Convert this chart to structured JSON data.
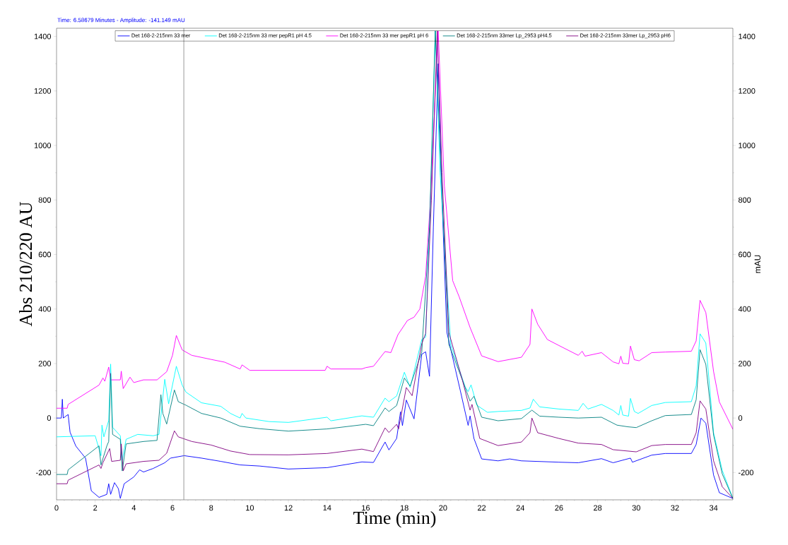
{
  "chart_data": {
    "type": "line",
    "annotations": [
      "Time:  6.58679 Minutes - Amplitude:  -141.149 mAU"
    ],
    "xlabel": "Time (min)",
    "ylabel": "Abs 210/220 AU",
    "y2label": "mAU",
    "xlim": [
      0,
      35
    ],
    "ylim": [
      -300,
      1430
    ],
    "y2lim": [
      -300,
      1430
    ],
    "xticks": [
      0,
      2,
      4,
      6,
      8,
      10,
      12,
      14,
      16,
      18,
      20,
      22,
      24,
      26,
      28,
      30,
      32,
      34
    ],
    "yticks": [
      -200,
      0,
      200,
      400,
      600,
      800,
      1000,
      1200,
      1400
    ],
    "y2ticks": [
      -200,
      0,
      200,
      400,
      600,
      800,
      1000,
      1200,
      1400
    ],
    "legend": "top",
    "ref_lines": [
      {
        "axis": "x",
        "value": 6.58679,
        "color": "#808080"
      }
    ],
    "series": [
      {
        "name": "Det 168-2-215nm 33 mer",
        "color": "#0000ff",
        "x": [
          0,
          0.25,
          0.3,
          0.35,
          0.6,
          0.7,
          1.0,
          1.5,
          1.8,
          2.2,
          2.6,
          2.7,
          2.8,
          3.0,
          3.2,
          3.3,
          3.5,
          4.0,
          4.3,
          4.5,
          5.0,
          5.6,
          5.9,
          6.6,
          7.5,
          8.5,
          9.5,
          10.5,
          12,
          14,
          15.8,
          16.4,
          17.0,
          17.2,
          17.6,
          17.8,
          17.9,
          18.1,
          18.5,
          18.9,
          19.1,
          19.3,
          19.5,
          19.75,
          19.95,
          20.2,
          20.9,
          21.3,
          21.4,
          21.6,
          22.0,
          22.85,
          23.45,
          24.06,
          26,
          27,
          28.2,
          28.8,
          29.7,
          29.8,
          30.8,
          31.5,
          32.85,
          33.1,
          33.35,
          33.6,
          34.0,
          34.3,
          35
        ],
        "values": [
          0,
          0,
          69,
          0,
          13,
          -52,
          -103,
          -147,
          -267,
          -291,
          -280,
          -241,
          -280,
          -237,
          -259,
          -295,
          -241,
          -216,
          -190,
          -198,
          -185,
          -164,
          -147,
          -138,
          -147,
          -159,
          -172,
          -176,
          -187,
          -182,
          -161,
          -163,
          -88,
          -117,
          -75,
          23,
          -28,
          66,
          -3,
          234,
          243,
          153,
          700,
          1300,
          800,
          314,
          99,
          -27,
          8,
          -75,
          -150,
          -157,
          -150,
          -157,
          -162,
          -164,
          -149,
          -164,
          -147,
          -162,
          -136,
          -130,
          -130,
          -97,
          0,
          -19,
          -209,
          -274,
          -295
        ]
      },
      {
        "name": "Det 168-2-215nm 33 mer pepR1 pH 4.5",
        "color": "#00ffff",
        "x": [
          0,
          2.0,
          2.3,
          2.35,
          2.45,
          2.7,
          2.8,
          2.9,
          3.3,
          3.4,
          3.6,
          4.2,
          5.0,
          5.3,
          5.6,
          5.8,
          6.2,
          6.5,
          6.7,
          7.5,
          8.5,
          9.0,
          9.5,
          9.6,
          9.8,
          11.0,
          12,
          14.0,
          14.2,
          15.8,
          16.4,
          17.0,
          17.2,
          17.6,
          18.0,
          18.3,
          18.9,
          19.1,
          19.35,
          19.6,
          19.85,
          20.4,
          21.15,
          21.3,
          21.45,
          21.75,
          22.3,
          22.85,
          24.06,
          24.5,
          24.67,
          25.0,
          26,
          27,
          27.25,
          27.5,
          28.2,
          28.8,
          29.1,
          29.2,
          29.3,
          29.6,
          29.7,
          29.9,
          30.1,
          30.8,
          31.5,
          32.85,
          33.1,
          33.3,
          33.6,
          34.0,
          34.45,
          35
        ],
        "values": [
          -69,
          -65,
          -138,
          -26,
          -69,
          -9,
          198,
          -34,
          -65,
          -155,
          -78,
          -60,
          -65,
          -60,
          142,
          52,
          190,
          121,
          95,
          56,
          43,
          17,
          0,
          17,
          0,
          -13,
          -16,
          3,
          -10,
          8,
          3,
          73,
          60,
          81,
          168,
          112,
          288,
          297,
          800,
          1420,
          900,
          270,
          114,
          97,
          122,
          47,
          21,
          24,
          28,
          37,
          69,
          41,
          33,
          28,
          54,
          33,
          50,
          28,
          11,
          46,
          11,
          7,
          72,
          24,
          17,
          46,
          57,
          60,
          119,
          309,
          275,
          -54,
          -192,
          -295
        ]
      },
      {
        "name": "Det 168-2-215nm 33 mer pepR1 pH 6",
        "color": "#ff00ff",
        "x": [
          0,
          0.55,
          0.6,
          2.2,
          2.4,
          2.5,
          2.7,
          2.8,
          3.3,
          3.35,
          3.45,
          3.8,
          4.0,
          4.5,
          5.2,
          5.7,
          6.0,
          6.2,
          6.5,
          7.0,
          8.0,
          8.7,
          9.5,
          9.6,
          10,
          12,
          13.9,
          14.0,
          14.2,
          15.8,
          16.0,
          16.4,
          17.0,
          17.3,
          17.67,
          18.16,
          18.5,
          18.8,
          19.1,
          19.35,
          19.75,
          20.07,
          20.5,
          20.84,
          21.4,
          22.0,
          22.85,
          24.06,
          24.5,
          24.6,
          24.9,
          25.4,
          26,
          27,
          27.2,
          27.35,
          28.2,
          28.8,
          29.1,
          29.2,
          29.3,
          29.6,
          29.7,
          29.9,
          30.15,
          30.8,
          31.5,
          32.85,
          33.1,
          33.3,
          33.6,
          34.0,
          34.3,
          35
        ],
        "values": [
          36,
          36,
          50,
          121,
          147,
          135,
          187,
          140,
          140,
          172,
          108,
          150,
          130,
          140,
          140,
          170,
          230,
          303,
          250,
          230,
          215,
          205,
          180,
          195,
          175,
          175,
          175,
          190,
          180,
          180,
          185,
          190,
          244,
          240,
          306,
          358,
          370,
          400,
          520,
          800,
          1420,
          852,
          504,
          444,
          332,
          228,
          207,
          223,
          270,
          400,
          344,
          288,
          266,
          230,
          245,
          227,
          240,
          206,
          199,
          227,
          201,
          199,
          264,
          214,
          210,
          240,
          242,
          245,
          283,
          432,
          387,
          171,
          59,
          -41
        ]
      },
      {
        "name": "Det 168-2-215nm 33mer Lp_2953 pH4.5",
        "color": "#008080",
        "x": [
          0,
          0.55,
          0.6,
          2.2,
          2.3,
          2.6,
          2.7,
          2.8,
          2.9,
          3.3,
          3.4,
          3.6,
          4.5,
          5.2,
          5.4,
          5.5,
          5.7,
          6.1,
          6.3,
          6.7,
          7.5,
          8.5,
          9.5,
          10.5,
          12,
          14,
          16,
          16.4,
          17.0,
          17.2,
          17.6,
          18.0,
          18.3,
          18.9,
          19.3,
          19.6,
          19.9,
          20.3,
          21.0,
          21.4,
          21.6,
          22.0,
          22.85,
          24.06,
          24.6,
          25,
          26,
          27,
          28.2,
          29.0,
          29.55,
          30.0,
          30.8,
          31.5,
          32.85,
          33.1,
          33.3,
          33.6,
          34.0,
          34.45,
          35
        ],
        "values": [
          -207,
          -207,
          -190,
          -102,
          -172,
          -103,
          -86,
          164,
          -60,
          -78,
          -194,
          -95,
          -86,
          -82,
          86,
          17,
          -22,
          103,
          60,
          47,
          17,
          0,
          -30,
          -39,
          -48,
          -40,
          -23,
          -28,
          37,
          24,
          46,
          147,
          117,
          242,
          700,
          1420,
          900,
          270,
          140,
          62,
          80,
          3,
          -10,
          -2,
          29,
          7,
          3,
          0,
          3,
          -26,
          -32,
          -35,
          -10,
          9,
          13,
          67,
          251,
          197,
          -62,
          -205,
          -295
        ]
      },
      {
        "name": "Det 168-2-215nm 33mer Lp_2953 pH6",
        "color": "#800080",
        "x": [
          0,
          0.55,
          0.6,
          2.2,
          2.3,
          2.4,
          2.75,
          2.85,
          3.3,
          3.35,
          3.45,
          3.6,
          4.5,
          5.3,
          5.7,
          6.1,
          6.3,
          7.0,
          8.0,
          9.0,
          10,
          12,
          14,
          15.8,
          16.4,
          17.0,
          17.2,
          17.6,
          17.7,
          18.1,
          18.4,
          18.9,
          19.1,
          19.4,
          19.7,
          19.95,
          20.3,
          21.0,
          21.4,
          21.5,
          21.9,
          22.85,
          24.06,
          24.5,
          24.6,
          24.9,
          26,
          27,
          28.2,
          28.8,
          30,
          30.8,
          31.5,
          32.85,
          33.1,
          33.3,
          33.6,
          34,
          34.45,
          35
        ],
        "values": [
          -241,
          -241,
          -228,
          -172,
          -185,
          -164,
          -112,
          -159,
          -155,
          -95,
          -194,
          -168,
          -159,
          -155,
          -129,
          -47,
          -69,
          -86,
          -99,
          -121,
          -134,
          -135,
          -130,
          -114,
          -123,
          -36,
          -53,
          -23,
          -40,
          112,
          82,
          273,
          310,
          800,
          1420,
          900,
          314,
          140,
          29,
          50,
          -75,
          -101,
          -88,
          -54,
          0,
          -54,
          -75,
          -92,
          -97,
          -116,
          -124,
          -101,
          -97,
          -97,
          -54,
          63,
          33,
          -157,
          -252,
          -295
        ]
      }
    ]
  }
}
